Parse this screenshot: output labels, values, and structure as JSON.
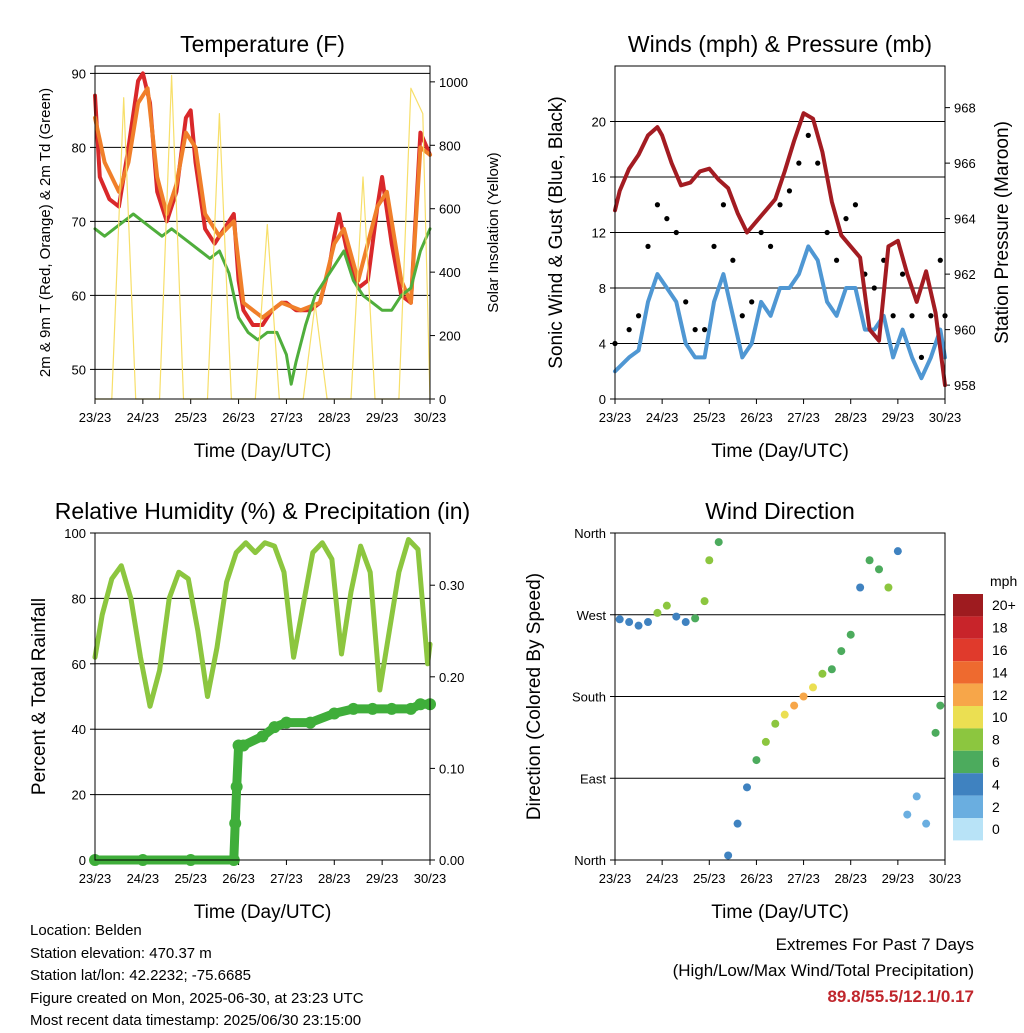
{
  "panels": {
    "temperature": {
      "title": "Temperature (F)",
      "ylabel_left": "2m & 9m T (Red, Orange) & 2m Td (Green)",
      "ylabel_right": "Solar Insolation (Yellow)",
      "xlabel": "Time (Day/UTC)",
      "x_ticks": [
        "23/23",
        "24/23",
        "25/23",
        "26/23",
        "27/23",
        "28/23",
        "29/23",
        "30/23"
      ],
      "y_left_ticks": [
        "50",
        "60",
        "70",
        "80",
        "90"
      ],
      "y_right_ticks": [
        "0",
        "200",
        "400",
        "600",
        "800",
        "1000"
      ]
    },
    "winds": {
      "title": "Winds (mph) & Pressure (mb)",
      "ylabel_left": "Sonic Wind & Gust (Blue, Black)",
      "ylabel_right": "Station Pressure (Maroon)",
      "xlabel": "Time (Day/UTC)",
      "x_ticks": [
        "23/23",
        "24/23",
        "25/23",
        "26/23",
        "27/23",
        "28/23",
        "29/23",
        "30/23"
      ],
      "y_left_ticks": [
        "0",
        "4",
        "8",
        "12",
        "16",
        "20"
      ],
      "y_right_ticks": [
        "958",
        "960",
        "962",
        "964",
        "966",
        "968"
      ]
    },
    "humidity": {
      "title": "Relative Humidity (%) & Precipitation (in)",
      "ylabel_left": "Percent & Total Rainfall",
      "xlabel": "Time (Day/UTC)",
      "x_ticks": [
        "23/23",
        "24/23",
        "25/23",
        "26/23",
        "27/23",
        "28/23",
        "29/23",
        "30/23"
      ],
      "y_left_ticks": [
        "0",
        "20",
        "40",
        "60",
        "80",
        "100"
      ],
      "y_right_ticks": [
        "0.00",
        "0.10",
        "0.20",
        "0.30"
      ]
    },
    "direction": {
      "title": "Wind Direction",
      "ylabel_left": "Direction (Colored By Speed)",
      "xlabel": "Time (Day/UTC)",
      "x_ticks": [
        "23/23",
        "24/23",
        "25/23",
        "26/23",
        "27/23",
        "28/23",
        "29/23",
        "30/23"
      ],
      "y_ticks": [
        "North",
        "East",
        "South",
        "West",
        "North"
      ],
      "legend_title": "mph",
      "legend_labels": [
        "20+",
        "18",
        "16",
        "14",
        "12",
        "10",
        "8",
        "6",
        "4",
        "2",
        "0"
      ],
      "legend_colors": [
        "#9e1b1f",
        "#c8242a",
        "#e03a2c",
        "#ee6a2f",
        "#f7a649",
        "#ebdf52",
        "#8cc63f",
        "#4cab5d",
        "#3f82c0",
        "#6aaee0",
        "#b8e3f7"
      ]
    }
  },
  "colors": {
    "temp2m": "#d9282a",
    "temp9m": "#f07f2a",
    "dewpoint": "#4fae3c",
    "solar": "#f7df6a",
    "wind": "#4f97d3",
    "gust": "#000000",
    "pressure": "#a31c22",
    "rh": "#8cc63f",
    "precip": "#3fae3a"
  },
  "chart_data": [
    {
      "type": "line",
      "title": "Temperature (F)",
      "xlabel": "Time (Day/UTC)",
      "ylabel": "2m & 9m T (Red, Orange) & 2m Td (Green)",
      "ylabel_right": "Solar Insolation (Yellow)",
      "x_unit": "days since 23/23",
      "xlim": [
        0,
        7
      ],
      "ylim": [
        46,
        91
      ],
      "ylim_right": [
        0,
        1050
      ],
      "series": [
        {
          "name": "2m T",
          "axis": "left",
          "color": "#d9282a",
          "x": [
            0,
            0.1,
            0.3,
            0.5,
            0.7,
            0.9,
            1.0,
            1.15,
            1.3,
            1.5,
            1.7,
            1.9,
            2.0,
            2.1,
            2.3,
            2.5,
            2.7,
            2.9,
            3.0,
            3.1,
            3.3,
            3.5,
            3.7,
            3.9,
            4.0,
            4.2,
            4.5,
            4.7,
            4.9,
            5.0,
            5.1,
            5.3,
            5.5,
            5.7,
            5.9,
            6.0,
            6.2,
            6.4,
            6.6,
            6.8,
            7.0
          ],
          "y": [
            87,
            76,
            73,
            72,
            80,
            89,
            90,
            86,
            74,
            70,
            74,
            84,
            85,
            78,
            69,
            67,
            69,
            71,
            62,
            58,
            56,
            56,
            58,
            59,
            59,
            58,
            58,
            59,
            64,
            68,
            71,
            65,
            61,
            62,
            72,
            76,
            67,
            60,
            59,
            82,
            79
          ]
        },
        {
          "name": "9m T",
          "axis": "left",
          "color": "#f07f2a",
          "x": [
            0,
            0.2,
            0.5,
            0.7,
            0.9,
            1.1,
            1.3,
            1.5,
            1.7,
            1.9,
            2.1,
            2.3,
            2.6,
            2.9,
            3.1,
            3.5,
            3.9,
            4.3,
            4.7,
            5.0,
            5.2,
            5.5,
            5.9,
            6.1,
            6.4,
            6.6,
            6.8,
            7.0
          ],
          "y": [
            84,
            78,
            74,
            78,
            86,
            88,
            76,
            71,
            75,
            82,
            80,
            71,
            68,
            70,
            59,
            57,
            59,
            58,
            59,
            67,
            69,
            62,
            72,
            74,
            62,
            59,
            80,
            79
          ]
        },
        {
          "name": "2m Td",
          "axis": "left",
          "color": "#4fae3c",
          "x": [
            0,
            0.2,
            0.4,
            0.6,
            0.8,
            1.0,
            1.2,
            1.4,
            1.6,
            1.8,
            2.0,
            2.2,
            2.4,
            2.6,
            2.8,
            3.0,
            3.2,
            3.4,
            3.6,
            3.8,
            4.0,
            4.1,
            4.2,
            4.4,
            4.6,
            4.8,
            5.0,
            5.2,
            5.4,
            5.6,
            5.8,
            6.0,
            6.2,
            6.4,
            6.6,
            6.8,
            7.0
          ],
          "y": [
            69,
            68,
            69,
            70,
            71,
            70,
            69,
            68,
            69,
            68,
            67,
            66,
            65,
            66,
            63,
            57,
            55,
            54,
            55,
            55,
            52,
            48,
            51,
            56,
            60,
            62,
            64,
            66,
            62,
            60,
            59,
            58,
            58,
            60,
            61,
            66,
            69
          ]
        },
        {
          "name": "Solar Insolation",
          "axis": "right",
          "color": "#f7df6a",
          "x": [
            0,
            0.35,
            0.6,
            0.85,
            1.1,
            1.35,
            1.6,
            1.85,
            2.1,
            2.35,
            2.6,
            2.85,
            3.1,
            3.35,
            3.6,
            3.85,
            4.1,
            4.35,
            4.6,
            4.85,
            5.1,
            5.35,
            5.6,
            5.85,
            6.1,
            6.35,
            6.6,
            6.85,
            7.0
          ],
          "y": [
            0,
            0,
            950,
            0,
            0,
            0,
            1020,
            0,
            0,
            0,
            900,
            0,
            0,
            0,
            550,
            0,
            0,
            0,
            300,
            0,
            0,
            0,
            700,
            0,
            0,
            0,
            980,
            900,
            0
          ]
        }
      ]
    },
    {
      "type": "line",
      "title": "Winds (mph) & Pressure (mb)",
      "xlabel": "Time (Day/UTC)",
      "ylabel": "Sonic Wind & Gust (Blue, Black)",
      "ylabel_right": "Station Pressure (Maroon)",
      "x_unit": "days since 23/23",
      "xlim": [
        0,
        7
      ],
      "ylim": [
        0,
        24
      ],
      "ylim_right": [
        957.5,
        969.5
      ],
      "series": [
        {
          "name": "Sonic Wind",
          "axis": "left",
          "color": "#4f97d3",
          "x": [
            0,
            0.3,
            0.5,
            0.7,
            0.9,
            1.1,
            1.3,
            1.5,
            1.7,
            1.9,
            2.1,
            2.3,
            2.5,
            2.7,
            2.9,
            3.1,
            3.3,
            3.5,
            3.7,
            3.9,
            4.1,
            4.3,
            4.5,
            4.7,
            4.9,
            5.1,
            5.3,
            5.5,
            5.7,
            5.9,
            6.1,
            6.3,
            6.5,
            6.7,
            6.9,
            7.0
          ],
          "y": [
            2,
            3,
            3.5,
            7,
            9,
            8,
            7,
            4,
            3,
            3,
            7,
            9,
            6,
            3,
            4,
            7,
            6,
            8,
            8,
            9,
            11,
            10,
            7,
            6,
            8,
            8,
            5,
            5,
            6,
            3,
            5,
            3,
            1.5,
            3,
            5,
            3
          ]
        },
        {
          "name": "Gust",
          "axis": "left",
          "color": "#000000",
          "x": [
            0,
            0.3,
            0.5,
            0.7,
            0.9,
            1.1,
            1.3,
            1.5,
            1.7,
            1.9,
            2.1,
            2.3,
            2.5,
            2.7,
            2.9,
            3.1,
            3.3,
            3.5,
            3.7,
            3.9,
            4.1,
            4.3,
            4.5,
            4.7,
            4.9,
            5.1,
            5.3,
            5.5,
            5.7,
            5.9,
            6.1,
            6.3,
            6.5,
            6.7,
            6.9,
            7.0
          ],
          "y": [
            4,
            5,
            6,
            11,
            14,
            13,
            12,
            7,
            5,
            5,
            11,
            14,
            10,
            6,
            7,
            12,
            11,
            14,
            15,
            17,
            19,
            17,
            12,
            10,
            13,
            14,
            9,
            8,
            10,
            6,
            9,
            6,
            3,
            6,
            10,
            6
          ]
        },
        {
          "name": "Station Pressure",
          "axis": "right",
          "color": "#a31c22",
          "x": [
            0,
            0.1,
            0.3,
            0.5,
            0.7,
            0.9,
            1.0,
            1.2,
            1.4,
            1.6,
            1.8,
            2.0,
            2.2,
            2.4,
            2.6,
            2.8,
            3.0,
            3.2,
            3.4,
            3.6,
            3.8,
            4.0,
            4.2,
            4.4,
            4.6,
            4.8,
            5.0,
            5.2,
            5.4,
            5.6,
            5.8,
            6.0,
            6.2,
            6.4,
            6.6,
            6.8,
            7.0
          ],
          "y": [
            964.3,
            965.0,
            965.8,
            966.3,
            967.0,
            967.3,
            967.0,
            966.0,
            965.2,
            965.3,
            965.7,
            965.8,
            965.4,
            965.1,
            964.2,
            963.5,
            963.9,
            964.3,
            964.7,
            965.7,
            966.8,
            967.8,
            967.6,
            966.4,
            964.6,
            963.4,
            963.0,
            962.6,
            960.0,
            959.6,
            963.0,
            963.2,
            962.0,
            961.0,
            962.1,
            960.6,
            958.0
          ]
        }
      ]
    },
    {
      "type": "line",
      "title": "Relative Humidity (%) & Precipitation (in)",
      "xlabel": "Time (Day/UTC)",
      "ylabel": "Percent & Total Rainfall",
      "x_unit": "days since 23/23",
      "xlim": [
        0,
        7
      ],
      "ylim": [
        0,
        100
      ],
      "ylim_right": [
        0,
        0.357
      ],
      "series": [
        {
          "name": "Relative Humidity",
          "axis": "left",
          "color": "#8cc63f",
          "x": [
            0,
            0.15,
            0.35,
            0.55,
            0.75,
            0.95,
            1.15,
            1.35,
            1.55,
            1.75,
            1.95,
            2.15,
            2.35,
            2.55,
            2.75,
            2.95,
            3.15,
            3.35,
            3.55,
            3.75,
            3.95,
            4.15,
            4.35,
            4.55,
            4.75,
            4.95,
            5.15,
            5.35,
            5.55,
            5.75,
            5.95,
            6.15,
            6.35,
            6.55,
            6.75,
            6.95,
            7.0
          ],
          "y": [
            62,
            75,
            86,
            90,
            80,
            62,
            47,
            58,
            80,
            88,
            86,
            70,
            50,
            65,
            85,
            94,
            97,
            94,
            97,
            96,
            88,
            62,
            78,
            94,
            97,
            92,
            63,
            82,
            96,
            88,
            52,
            70,
            88,
            98,
            95,
            60,
            66
          ]
        },
        {
          "name": "Total Precipitation",
          "axis": "right",
          "color": "#3fae3a",
          "x": [
            0,
            1.0,
            2.0,
            2.9,
            2.93,
            2.96,
            3.0,
            3.1,
            3.5,
            3.75,
            4.0,
            4.5,
            5.0,
            5.4,
            5.8,
            6.2,
            6.6,
            6.8,
            7.0
          ],
          "y": [
            0,
            0,
            0,
            0,
            0.04,
            0.08,
            0.125,
            0.125,
            0.135,
            0.145,
            0.15,
            0.15,
            0.16,
            0.165,
            0.165,
            0.165,
            0.165,
            0.17,
            0.17
          ]
        }
      ]
    },
    {
      "type": "scatter",
      "title": "Wind Direction",
      "xlabel": "Time (Day/UTC)",
      "ylabel": "Direction (Colored By Speed)",
      "x_unit": "days since 23/23",
      "xlim": [
        0,
        7
      ],
      "ylim": [
        0,
        360
      ],
      "y_tick_labels": [
        "North",
        "East",
        "South",
        "West",
        "North"
      ],
      "color_scale": {
        "label": "mph",
        "min": 0,
        "max": 20
      },
      "series": [
        {
          "name": "Wind Direction",
          "x": [
            0.1,
            0.3,
            0.5,
            0.7,
            0.9,
            1.1,
            1.3,
            1.5,
            1.7,
            1.9,
            2.0,
            2.2,
            2.4,
            2.6,
            2.8,
            3.0,
            3.2,
            3.4,
            3.6,
            3.8,
            4.0,
            4.2,
            4.4,
            4.6,
            4.8,
            5.0,
            5.2,
            5.4,
            5.6,
            5.8,
            6.0,
            6.2,
            6.4,
            6.6,
            6.8,
            6.9
          ],
          "y": [
            265,
            262,
            258,
            262,
            272,
            280,
            268,
            262,
            266,
            285,
            330,
            350,
            5,
            40,
            80,
            110,
            130,
            150,
            160,
            170,
            180,
            190,
            205,
            210,
            230,
            248,
            300,
            330,
            320,
            300,
            340,
            50,
            70,
            40,
            140,
            170
          ],
          "speed": [
            3,
            3,
            4,
            4,
            7,
            7,
            4,
            3,
            5,
            7,
            7,
            6,
            3,
            3,
            4,
            6,
            7,
            8,
            10,
            11,
            12,
            9,
            7,
            6,
            6,
            5,
            4,
            5,
            6,
            7,
            4,
            2,
            1,
            2,
            5,
            6
          ]
        }
      ]
    }
  ],
  "footer": {
    "location": "Location: Belden",
    "elevation": "Station elevation: 470.37 m",
    "latlon": "Station lat/lon: 42.2232; -75.6685",
    "created": "Figure created on Mon, 2025-06-30, at 23:23 UTC",
    "recent": "Most recent data timestamp: 2025/06/30 23:15:00"
  },
  "extremes": {
    "title": "Extremes For Past 7 Days",
    "subtitle": "(High/Low/Max Wind/Total Precipitation)",
    "values": "89.8/55.5/12.1/0.17"
  }
}
